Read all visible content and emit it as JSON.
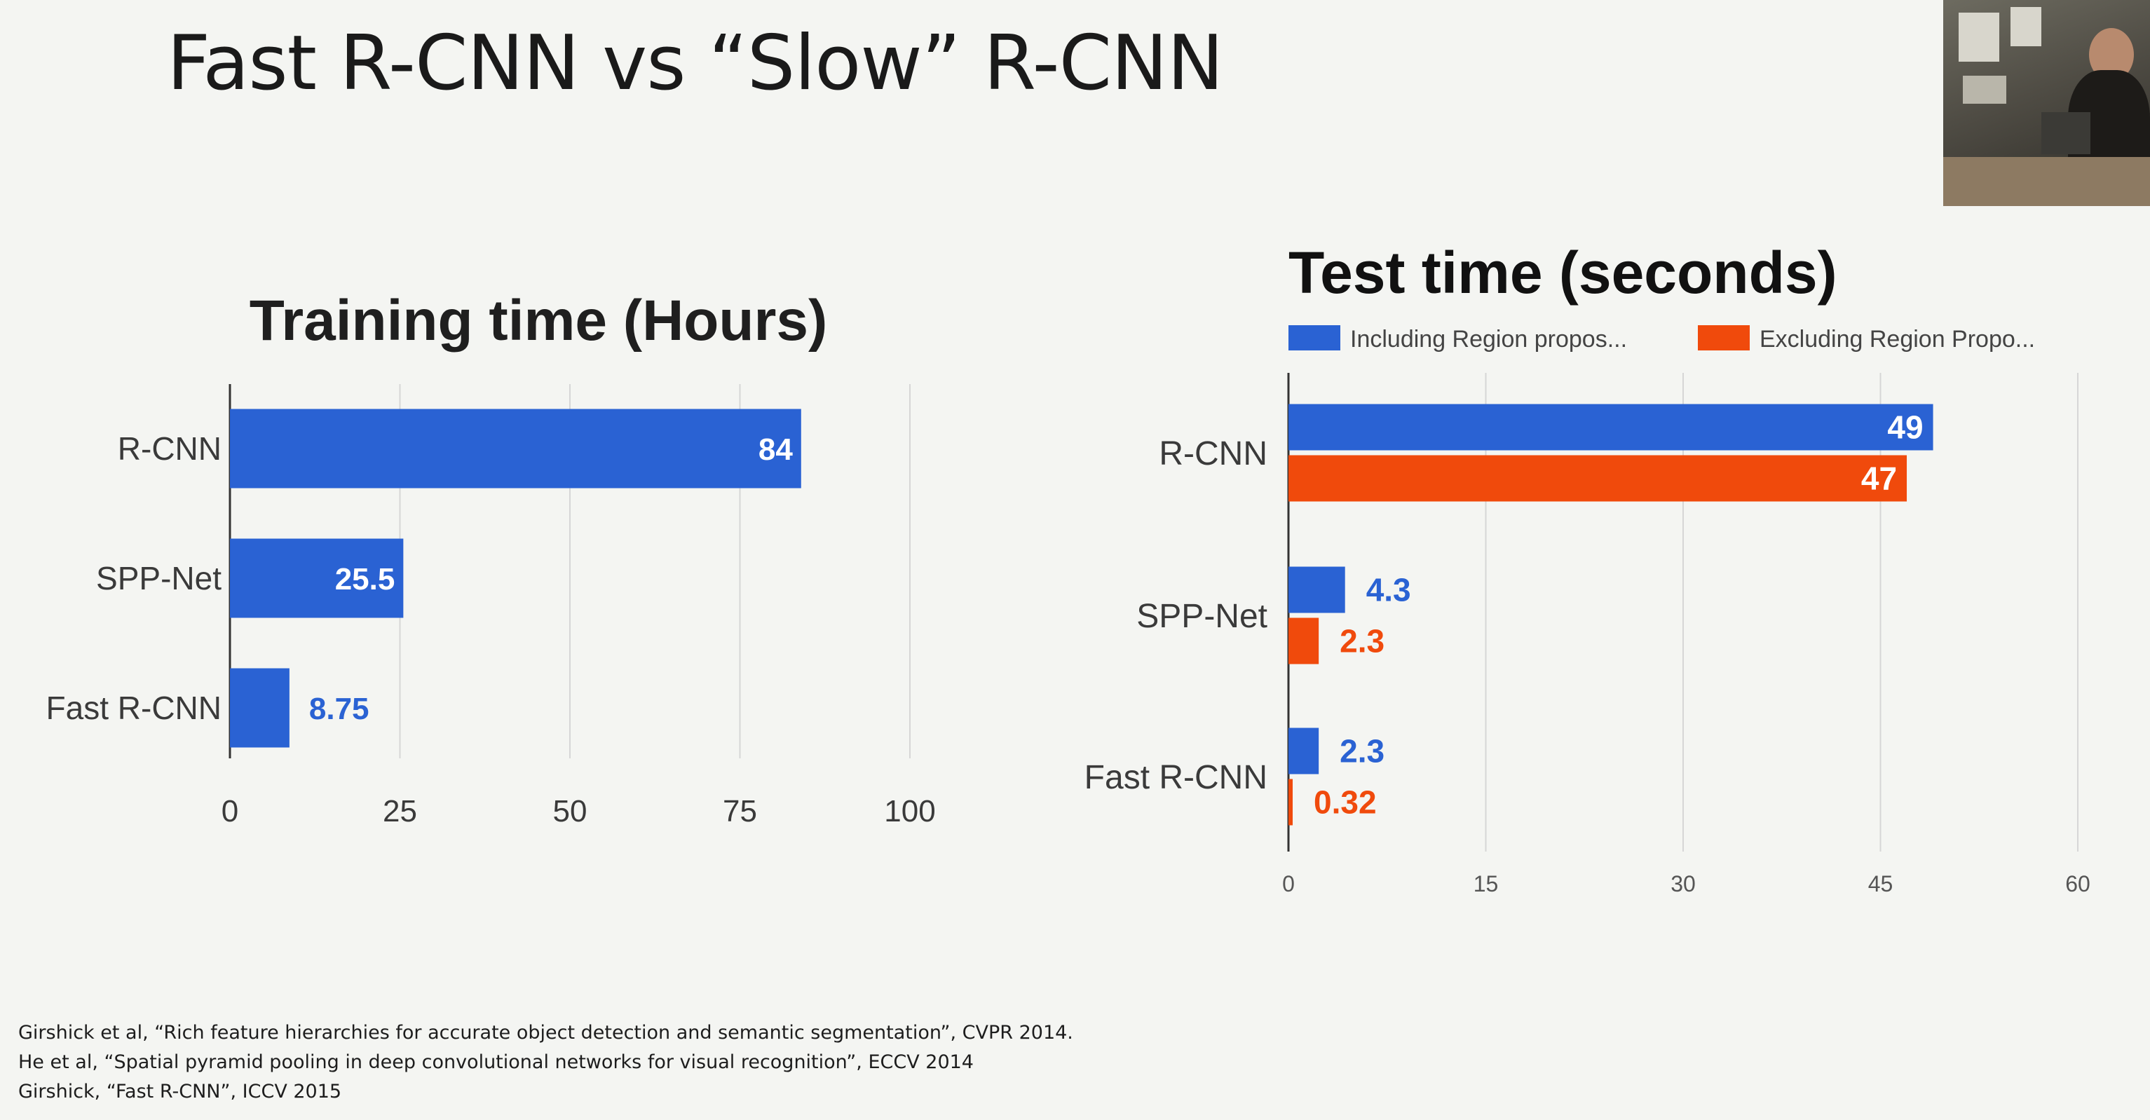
{
  "slide": {
    "title": "Fast R-CNN vs “Slow” R-CNN",
    "references": [
      "Girshick et al, “Rich feature hierarchies for accurate object detection and semantic segmentation”, CVPR 2014.",
      "He et al, “Spatial pyramid pooling in deep convolutional networks for visual recognition”, ECCV 2014",
      "Girshick, “Fast R-CNN”, ICCV 2015"
    ]
  },
  "chart_data": [
    {
      "type": "bar",
      "orientation": "horizontal",
      "title": "Training time (Hours)",
      "categories": [
        "R-CNN",
        "SPP-Net",
        "Fast R-CNN"
      ],
      "values": [
        84,
        25.5,
        8.75
      ],
      "value_labels": [
        "84",
        "25.5",
        "8.75"
      ],
      "xlim": [
        0,
        100
      ],
      "xticks": [
        "0",
        "25",
        "50",
        "75",
        "100"
      ],
      "grid": true,
      "color": "#2a62d3"
    },
    {
      "type": "bar",
      "orientation": "horizontal",
      "title": "Test time (seconds)",
      "categories": [
        "R-CNN",
        "SPP-Net",
        "Fast R-CNN"
      ],
      "series": [
        {
          "name": "Including Region propos...",
          "values": [
            49,
            4.3,
            2.3
          ],
          "value_labels": [
            "49",
            "4.3",
            "2.3"
          ],
          "color": "#2a62d3"
        },
        {
          "name": "Excluding Region Propo...",
          "values": [
            47,
            2.3,
            0.32
          ],
          "value_labels": [
            "47",
            "2.3",
            "0.32"
          ],
          "color": "#f04a0c"
        }
      ],
      "xlim": [
        0,
        60
      ],
      "xticks": [
        "0",
        "15",
        "30",
        "45",
        "60"
      ],
      "grid": true,
      "legend": "top"
    }
  ]
}
